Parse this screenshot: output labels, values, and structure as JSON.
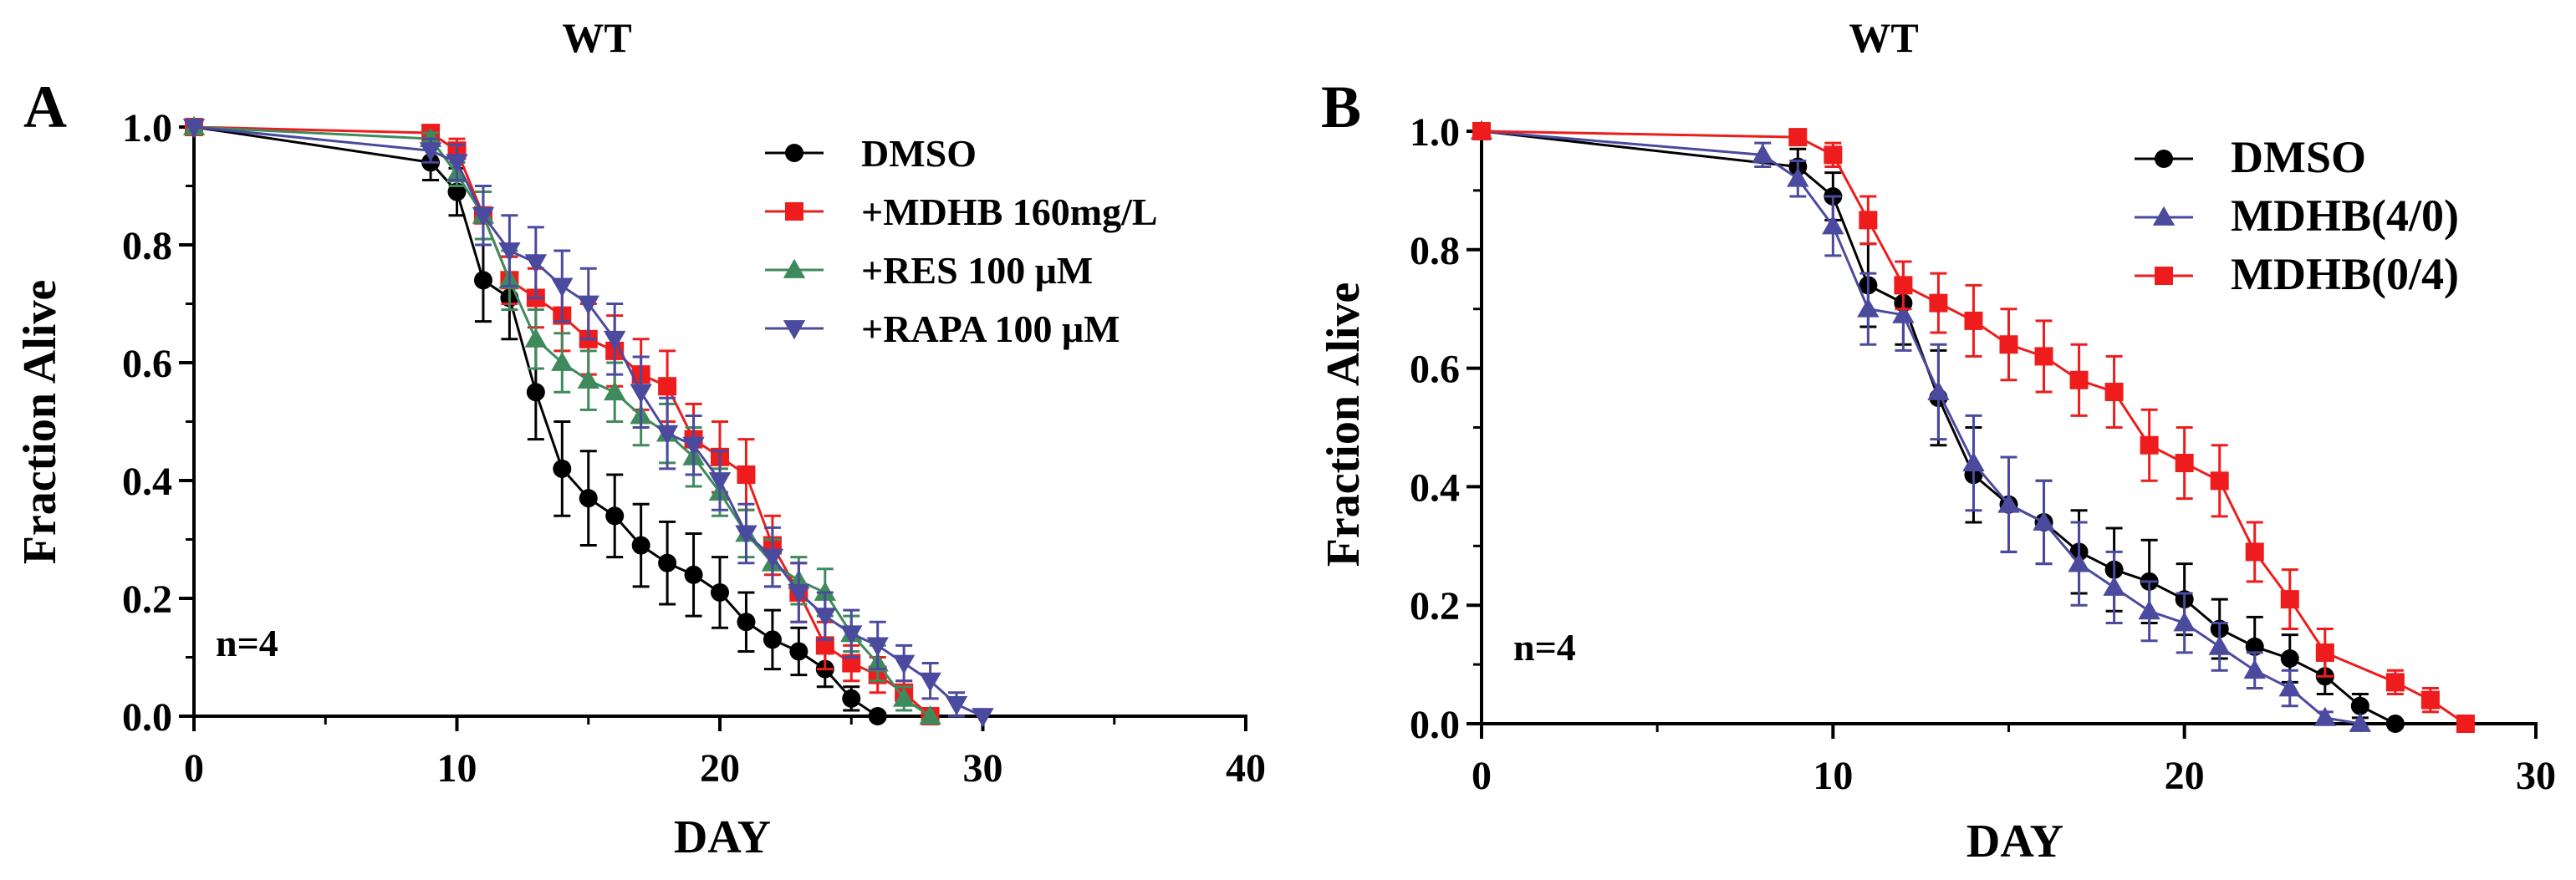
{
  "chart_data": [
    {
      "panel_label": "A",
      "type": "line",
      "title": "WT",
      "xlabel": "DAY",
      "ylabel": "Fraction Alive",
      "xlim": [
        0,
        40
      ],
      "ylim": [
        0,
        1.0
      ],
      "xticks": [
        "0",
        "10",
        "20",
        "30",
        "40"
      ],
      "yticks": [
        "0.0",
        "0.2",
        "0.4",
        "0.6",
        "0.8",
        "1.0"
      ],
      "grid": false,
      "legend_position": "top-right",
      "annotation": "n=4",
      "series": [
        {
          "name": "DMSO",
          "color": "#000000",
          "marker": "circle",
          "x": [
            0,
            9,
            10,
            11,
            12,
            13,
            14,
            15,
            16,
            17,
            18,
            19,
            20,
            21,
            22,
            23,
            24,
            25,
            26
          ],
          "y": [
            1.0,
            0.94,
            0.89,
            0.74,
            0.71,
            0.55,
            0.42,
            0.37,
            0.34,
            0.29,
            0.26,
            0.24,
            0.21,
            0.16,
            0.13,
            0.11,
            0.08,
            0.03,
            0.0
          ],
          "err": [
            0,
            0.03,
            0.04,
            0.07,
            0.07,
            0.08,
            0.08,
            0.08,
            0.07,
            0.07,
            0.07,
            0.07,
            0.06,
            0.05,
            0.05,
            0.04,
            0.03,
            0.02,
            0
          ]
        },
        {
          "name": "+MDHB 160mg/L",
          "color": "#ee1c1c",
          "marker": "square",
          "x": [
            0,
            9,
            10,
            11,
            12,
            13,
            14,
            15,
            16,
            17,
            18,
            19,
            20,
            21,
            22,
            23,
            24,
            25,
            26,
            27,
            28
          ],
          "y": [
            1.0,
            0.99,
            0.96,
            0.85,
            0.74,
            0.71,
            0.68,
            0.64,
            0.62,
            0.58,
            0.56,
            0.47,
            0.44,
            0.41,
            0.29,
            0.21,
            0.12,
            0.09,
            0.07,
            0.04,
            0.0
          ],
          "err": [
            0,
            0.01,
            0.02,
            0.04,
            0.04,
            0.05,
            0.06,
            0.06,
            0.06,
            0.06,
            0.06,
            0.06,
            0.06,
            0.06,
            0.05,
            0.05,
            0.04,
            0.03,
            0.03,
            0.02,
            0
          ]
        },
        {
          "name": "+RES 100 μM",
          "color": "#3f8a5c",
          "marker": "triangle-up",
          "x": [
            0,
            9,
            10,
            11,
            12,
            13,
            14,
            15,
            16,
            17,
            18,
            19,
            20,
            21,
            22,
            23,
            24,
            25,
            26,
            27,
            28
          ],
          "y": [
            1.0,
            0.98,
            0.92,
            0.85,
            0.74,
            0.64,
            0.6,
            0.57,
            0.55,
            0.51,
            0.48,
            0.44,
            0.38,
            0.31,
            0.26,
            0.23,
            0.21,
            0.14,
            0.09,
            0.03,
            0.0
          ],
          "err": [
            0,
            0.01,
            0.02,
            0.04,
            0.05,
            0.05,
            0.05,
            0.05,
            0.05,
            0.05,
            0.05,
            0.05,
            0.04,
            0.04,
            0.04,
            0.04,
            0.04,
            0.03,
            0.03,
            0.02,
            0
          ]
        },
        {
          "name": "+RAPA 100 μM",
          "color": "#4a4a9e",
          "marker": "triangle-down",
          "x": [
            0,
            9,
            10,
            11,
            12,
            13,
            14,
            15,
            16,
            17,
            18,
            19,
            20,
            21,
            22,
            23,
            24,
            25,
            26,
            27,
            28,
            29,
            30
          ],
          "y": [
            1.0,
            0.96,
            0.94,
            0.85,
            0.79,
            0.77,
            0.73,
            0.7,
            0.64,
            0.55,
            0.48,
            0.46,
            0.4,
            0.31,
            0.27,
            0.21,
            0.17,
            0.14,
            0.12,
            0.09,
            0.06,
            0.02,
            0.0
          ],
          "err": [
            0,
            0.02,
            0.03,
            0.05,
            0.06,
            0.06,
            0.06,
            0.06,
            0.06,
            0.06,
            0.06,
            0.05,
            0.05,
            0.05,
            0.05,
            0.05,
            0.04,
            0.04,
            0.04,
            0.03,
            0.03,
            0.02,
            0
          ]
        }
      ]
    },
    {
      "panel_label": "B",
      "type": "line",
      "title": "WT",
      "xlabel": "DAY",
      "ylabel": "Fraction Alive",
      "xlim": [
        0,
        30
      ],
      "ylim": [
        0,
        1.0
      ],
      "xticks": [
        "0",
        "10",
        "20",
        "30"
      ],
      "yticks": [
        "0.0",
        "0.2",
        "0.4",
        "0.6",
        "0.8",
        "1.0"
      ],
      "grid": false,
      "legend_position": "top-right",
      "annotation": "n=4",
      "series": [
        {
          "name": "DMSO",
          "color": "#000000",
          "marker": "circle",
          "x": [
            0,
            9,
            10,
            11,
            12,
            13,
            14,
            15,
            16,
            17,
            18,
            19,
            20,
            21,
            22,
            23,
            24,
            25,
            26
          ],
          "y": [
            1.0,
            0.94,
            0.89,
            0.74,
            0.71,
            0.55,
            0.42,
            0.37,
            0.34,
            0.29,
            0.26,
            0.24,
            0.21,
            0.16,
            0.13,
            0.11,
            0.08,
            0.03,
            0.0
          ],
          "err": [
            0,
            0.03,
            0.04,
            0.07,
            0.07,
            0.08,
            0.08,
            0.08,
            0.07,
            0.07,
            0.07,
            0.07,
            0.06,
            0.05,
            0.05,
            0.04,
            0.03,
            0.02,
            0
          ]
        },
        {
          "name": "MDHB(4/0)",
          "color": "#4a4a9e",
          "marker": "triangle-up",
          "x": [
            0,
            8,
            9,
            10,
            11,
            12,
            13,
            14,
            15,
            16,
            17,
            18,
            19,
            20,
            21,
            22,
            23,
            24,
            25
          ],
          "y": [
            1.0,
            0.96,
            0.92,
            0.84,
            0.7,
            0.69,
            0.56,
            0.44,
            0.37,
            0.34,
            0.27,
            0.23,
            0.19,
            0.17,
            0.13,
            0.09,
            0.06,
            0.01,
            0.0
          ],
          "err": [
            0,
            0.02,
            0.03,
            0.05,
            0.06,
            0.06,
            0.08,
            0.08,
            0.08,
            0.07,
            0.07,
            0.06,
            0.05,
            0.05,
            0.04,
            0.03,
            0.03,
            0.01,
            0
          ]
        },
        {
          "name": "MDHB(0/4)",
          "color": "#ee1c1c",
          "marker": "square",
          "x": [
            0,
            9,
            10,
            11,
            12,
            13,
            14,
            15,
            16,
            17,
            18,
            19,
            20,
            21,
            22,
            23,
            24,
            26,
            27,
            28
          ],
          "y": [
            1.0,
            0.99,
            0.96,
            0.85,
            0.74,
            0.71,
            0.68,
            0.64,
            0.62,
            0.58,
            0.56,
            0.47,
            0.44,
            0.41,
            0.29,
            0.21,
            0.12,
            0.07,
            0.04,
            0.0
          ],
          "err": [
            0,
            0.01,
            0.02,
            0.04,
            0.04,
            0.05,
            0.06,
            0.06,
            0.06,
            0.06,
            0.06,
            0.06,
            0.06,
            0.06,
            0.05,
            0.05,
            0.04,
            0.02,
            0.02,
            0
          ]
        }
      ]
    }
  ]
}
